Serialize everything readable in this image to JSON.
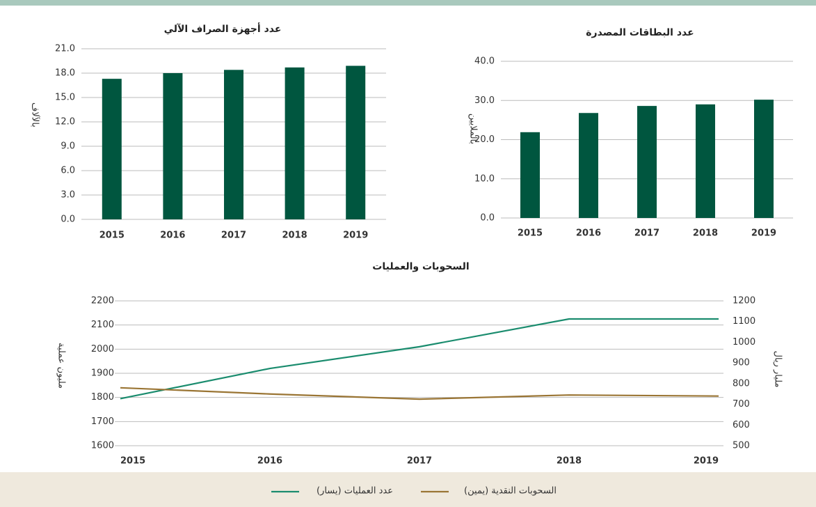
{
  "chart_data": [
    {
      "type": "bar",
      "title": "عدد أجهزة الصراف الآلي",
      "y_label": "بالآلاف",
      "categories": [
        "2015",
        "2016",
        "2017",
        "2018",
        "2019"
      ],
      "values": [
        17.3,
        18.0,
        18.4,
        18.7,
        18.9
      ],
      "color": "#00563f",
      "ylim": [
        0,
        21
      ],
      "yticks": [
        {
          "value": 0,
          "label": "0.0"
        },
        {
          "value": 3,
          "label": "3.0"
        },
        {
          "value": 6,
          "label": "6.0"
        },
        {
          "value": 9,
          "label": "9.0"
        },
        {
          "value": 12,
          "label": "12.0"
        },
        {
          "value": 15,
          "label": "15.0"
        },
        {
          "value": 18,
          "label": "18.0"
        },
        {
          "value": 21,
          "label": "21.0"
        }
      ],
      "grid": true
    },
    {
      "type": "bar",
      "title": "عدد البطاقات المصدرة",
      "y_label": "بالملايين",
      "categories": [
        "2015",
        "2016",
        "2017",
        "2018",
        "2019"
      ],
      "values": [
        21.9,
        26.8,
        28.6,
        29.0,
        30.2
      ],
      "color": "#00563f",
      "ylim": [
        0,
        40
      ],
      "yticks": [
        {
          "value": 0,
          "label": "0.0"
        },
        {
          "value": 10,
          "label": "10.0"
        },
        {
          "value": 20,
          "label": "20.0"
        },
        {
          "value": 30,
          "label": "30.0"
        },
        {
          "value": 40,
          "label": "40.0"
        }
      ],
      "grid": true
    },
    {
      "type": "line",
      "title": "السحوبات والعمليات",
      "y_label": "مليون عملية",
      "y2_label": "مليار ريال",
      "categories": [
        "2015",
        "2016",
        "2017",
        "2018",
        "2019"
      ],
      "series": [
        {
          "name": "عدد العمليات (يسار)",
          "color": "#1a8c6e",
          "values": [
            1795,
            1920,
            2010,
            2125,
            2125
          ]
        },
        {
          "name": "السحوبات النقدية (يمين)",
          "color": "#9a7534",
          "axis": "y2",
          "values": [
            780,
            750,
            725,
            745,
            740
          ]
        }
      ],
      "ylim": [
        1600,
        2200
      ],
      "yticks": [
        1600,
        1700,
        1800,
        1900,
        2000,
        2100,
        2200
      ],
      "y2lim": [
        500,
        1200
      ],
      "y2ticks": [
        500,
        600,
        700,
        800,
        900,
        1000,
        1100,
        1200
      ],
      "grid": true,
      "legend": "bottom"
    }
  ]
}
